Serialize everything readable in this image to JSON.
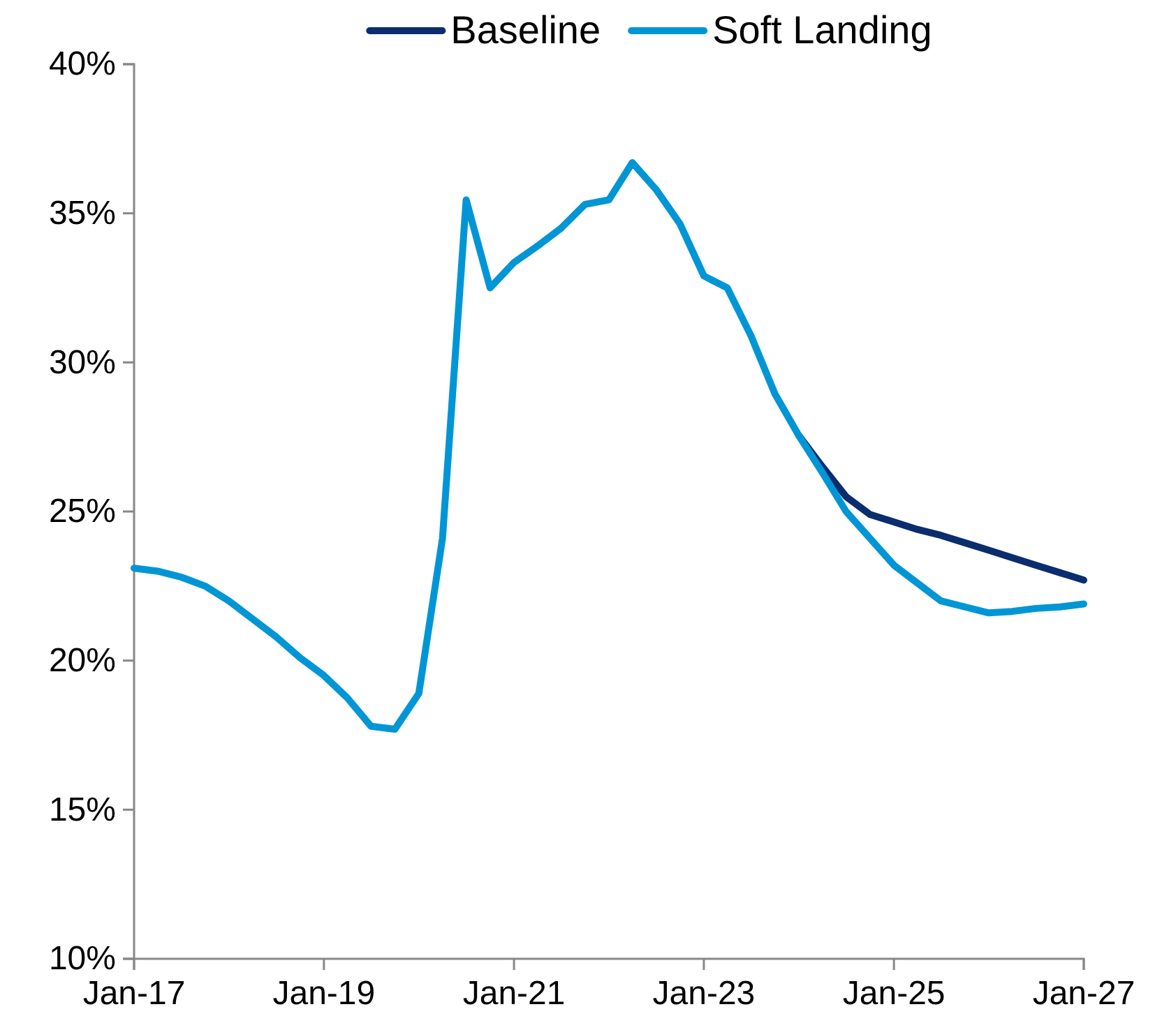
{
  "chart_data": {
    "type": "line",
    "x": [
      "2017-01",
      "2017-04",
      "2017-07",
      "2017-10",
      "2018-01",
      "2018-04",
      "2018-07",
      "2018-10",
      "2019-01",
      "2019-04",
      "2019-07",
      "2019-10",
      "2020-01",
      "2020-04",
      "2020-07",
      "2020-10",
      "2021-01",
      "2021-04",
      "2021-07",
      "2021-10",
      "2022-01",
      "2022-04",
      "2022-07",
      "2022-10",
      "2023-01",
      "2023-04",
      "2023-07",
      "2023-10",
      "2024-01",
      "2024-04",
      "2024-07",
      "2024-10",
      "2025-01",
      "2025-04",
      "2025-07",
      "2025-10",
      "2026-01",
      "2026-04",
      "2026-07",
      "2026-10",
      "2027-01"
    ],
    "series": [
      {
        "name": "Baseline",
        "color": "#0b2d6e",
        "values": [
          null,
          null,
          null,
          null,
          null,
          null,
          null,
          null,
          null,
          null,
          null,
          null,
          null,
          null,
          null,
          null,
          null,
          null,
          null,
          null,
          null,
          null,
          null,
          null,
          null,
          null,
          null,
          null,
          27.55,
          26.5,
          25.5,
          24.9,
          24.65,
          24.4,
          24.2,
          23.95,
          23.7,
          23.45,
          23.2,
          22.95,
          22.7
        ]
      },
      {
        "name": "Soft Landing",
        "color": "#0096d6",
        "values": [
          23.1,
          23.0,
          22.8,
          22.5,
          22.0,
          21.4,
          20.8,
          20.1,
          19.5,
          18.75,
          17.8,
          17.7,
          18.9,
          24.1,
          35.45,
          32.5,
          33.35,
          33.9,
          34.5,
          35.3,
          35.45,
          36.7,
          35.8,
          34.65,
          32.9,
          32.5,
          30.9,
          28.95,
          27.55,
          26.3,
          25.0,
          24.1,
          23.2,
          22.6,
          22.0,
          21.8,
          21.6,
          21.65,
          21.75,
          21.8,
          21.9
        ]
      }
    ],
    "xlim": [
      "2017-01",
      "2027-01"
    ],
    "xticks": [
      {
        "value": "2017-01",
        "label": "Jan-17"
      },
      {
        "value": "2019-01",
        "label": "Jan-19"
      },
      {
        "value": "2021-01",
        "label": "Jan-21"
      },
      {
        "value": "2023-01",
        "label": "Jan-23"
      },
      {
        "value": "2025-01",
        "label": "Jan-25"
      },
      {
        "value": "2027-01",
        "label": "Jan-27"
      }
    ],
    "ylim": [
      10,
      40
    ],
    "yticks": [
      {
        "value": 10,
        "label": "10%"
      },
      {
        "value": 15,
        "label": "15%"
      },
      {
        "value": 20,
        "label": "20%"
      },
      {
        "value": 25,
        "label": "25%"
      },
      {
        "value": 30,
        "label": "30%"
      },
      {
        "value": 35,
        "label": "35%"
      },
      {
        "value": 40,
        "label": "40%"
      }
    ],
    "grid": false,
    "legend": "top",
    "marker": "none",
    "line_style": "solid"
  }
}
